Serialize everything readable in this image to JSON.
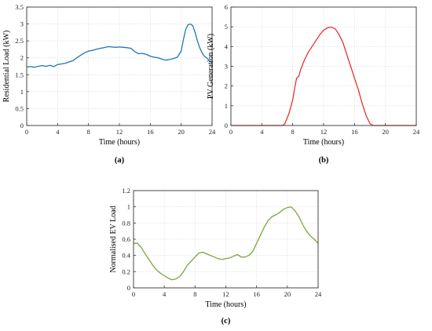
{
  "chart_data": [
    {
      "id": "a",
      "type": "line",
      "panel_label": "(a)",
      "xlabel": "Time (hours)",
      "ylabel": "Residential Load (kW)",
      "xlim": [
        0,
        24
      ],
      "ylim": [
        0,
        3.5
      ],
      "xticks": [
        0,
        4,
        8,
        12,
        16,
        20,
        24
      ],
      "yticks": [
        0,
        0.5,
        1,
        1.5,
        2,
        2.5,
        3,
        3.5
      ],
      "grid": true,
      "color": "#1f77b4",
      "x": [
        0,
        0.5,
        1,
        1.5,
        2,
        2.5,
        3,
        3.5,
        4,
        4.5,
        5,
        5.5,
        6,
        6.5,
        7,
        7.5,
        8,
        8.5,
        9,
        9.5,
        10,
        10.5,
        11,
        11.5,
        12,
        12.5,
        13,
        13.5,
        14,
        14.5,
        15,
        15.5,
        16,
        16.5,
        17,
        17.5,
        18,
        18.5,
        19,
        19.5,
        20,
        20.3,
        20.6,
        20.9,
        21.2,
        21.5,
        21.8,
        22.1,
        22.4,
        22.7,
        23,
        23.3,
        23.6,
        24
      ],
      "y": [
        1.73,
        1.74,
        1.72,
        1.75,
        1.77,
        1.75,
        1.78,
        1.74,
        1.8,
        1.82,
        1.84,
        1.88,
        1.92,
        2.0,
        2.08,
        2.15,
        2.2,
        2.22,
        2.25,
        2.28,
        2.3,
        2.33,
        2.32,
        2.31,
        2.32,
        2.31,
        2.3,
        2.28,
        2.18,
        2.12,
        2.13,
        2.1,
        2.05,
        2.02,
        2.0,
        1.96,
        1.93,
        1.95,
        1.98,
        2.02,
        2.2,
        2.55,
        2.85,
        2.98,
        3.0,
        2.95,
        2.75,
        2.5,
        2.3,
        2.15,
        2.05,
        2.0,
        1.92,
        1.85
      ]
    },
    {
      "id": "b",
      "type": "line",
      "panel_label": "(b)",
      "xlabel": "Time (hours)",
      "ylabel": "PV Generation (kW)",
      "xlim": [
        0,
        24
      ],
      "ylim": [
        0,
        6
      ],
      "xticks": [
        0,
        4,
        8,
        12,
        16,
        20,
        24
      ],
      "yticks": [
        0,
        1,
        2,
        3,
        4,
        5,
        6
      ],
      "grid": true,
      "color": "#e8312f",
      "x": [
        0,
        6.7,
        7,
        7.5,
        8,
        8.3,
        8.5,
        8.8,
        9,
        9.5,
        10,
        10.5,
        11,
        11.5,
        12,
        12.5,
        13,
        13.5,
        14,
        14.5,
        15,
        15.5,
        16,
        16.5,
        17,
        17.5,
        18,
        18.4,
        24
      ],
      "y": [
        0,
        0,
        0.1,
        0.6,
        1.3,
        2.0,
        2.4,
        2.5,
        2.8,
        3.3,
        3.7,
        4.0,
        4.3,
        4.6,
        4.82,
        4.95,
        4.98,
        4.9,
        4.6,
        4.2,
        3.6,
        3.0,
        2.4,
        1.8,
        1.1,
        0.5,
        0.1,
        0,
        0
      ]
    },
    {
      "id": "c",
      "type": "line",
      "panel_label": "(c)",
      "xlabel": "Time (hours)",
      "ylabel": "Normalised EV Load",
      "xlim": [
        0,
        24
      ],
      "ylim": [
        0,
        1.2
      ],
      "xticks": [
        0,
        4,
        8,
        12,
        16,
        20,
        24
      ],
      "yticks": [
        0,
        0.2,
        0.4,
        0.6,
        0.8,
        1,
        1.2
      ],
      "grid": true,
      "color": "#7aa63b",
      "x": [
        0,
        0.5,
        1,
        1.5,
        2,
        2.5,
        3,
        3.5,
        4,
        4.5,
        5,
        5.5,
        6,
        6.5,
        7,
        7.5,
        8,
        8.5,
        9,
        9.5,
        10,
        10.5,
        11,
        11.5,
        12,
        12.5,
        13,
        13.5,
        14,
        14.5,
        15,
        15.5,
        16,
        16.5,
        17,
        17.5,
        18,
        18.5,
        19,
        19.5,
        20,
        20.5,
        21,
        21.5,
        22,
        22.5,
        23,
        23.5,
        24
      ],
      "y": [
        0.55,
        0.55,
        0.5,
        0.42,
        0.35,
        0.28,
        0.22,
        0.18,
        0.15,
        0.12,
        0.1,
        0.11,
        0.14,
        0.2,
        0.28,
        0.33,
        0.38,
        0.43,
        0.44,
        0.42,
        0.4,
        0.38,
        0.36,
        0.35,
        0.36,
        0.37,
        0.39,
        0.41,
        0.38,
        0.38,
        0.4,
        0.45,
        0.55,
        0.65,
        0.75,
        0.83,
        0.88,
        0.9,
        0.93,
        0.97,
        0.99,
        1.0,
        0.95,
        0.88,
        0.78,
        0.7,
        0.64,
        0.6,
        0.55
      ]
    }
  ]
}
